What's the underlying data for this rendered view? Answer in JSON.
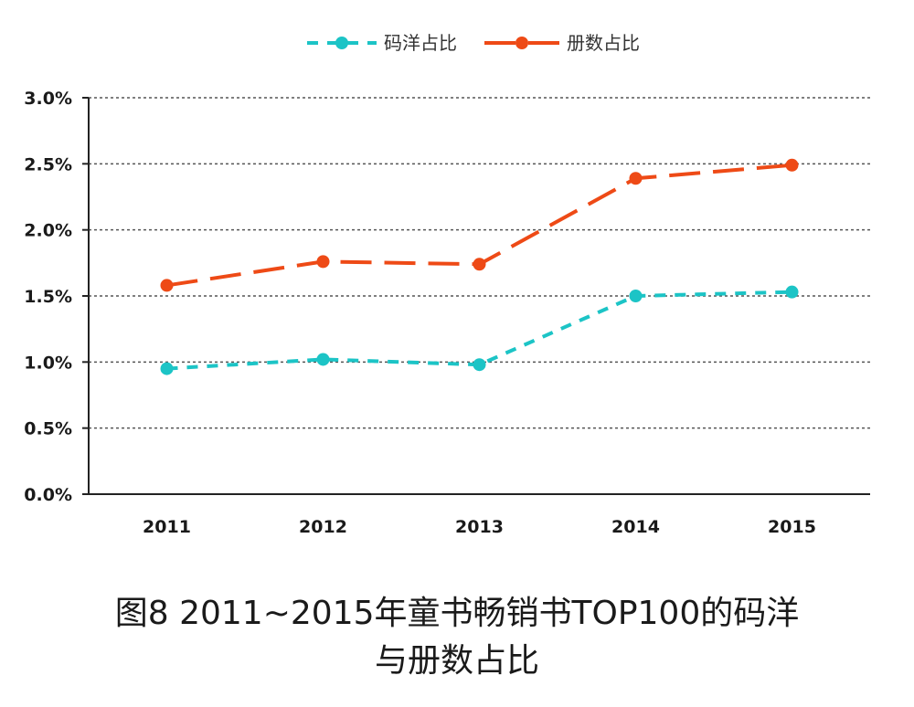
{
  "chart_data": {
    "type": "line",
    "categories": [
      "2011",
      "2012",
      "2013",
      "2014",
      "2015"
    ],
    "series": [
      {
        "name": "码洋占比",
        "values": [
          0.95,
          1.02,
          0.98,
          1.5,
          1.53
        ],
        "color": "#1cc4c6",
        "style": "dashed-short"
      },
      {
        "name": "册数占比",
        "values": [
          1.58,
          1.76,
          1.74,
          2.39,
          2.49
        ],
        "color": "#ee4a16",
        "style": "dashed-long"
      }
    ],
    "yticks": [
      "0.0%",
      "0.5%",
      "1.0%",
      "1.5%",
      "2.0%",
      "2.5%",
      "3.0%"
    ],
    "ylim": [
      0,
      3.0
    ],
    "grid": true,
    "legend": "top-center"
  },
  "caption": {
    "line1": "图8 2011~2015年童书畅销书TOP100的码洋",
    "line2": "与册数占比"
  }
}
